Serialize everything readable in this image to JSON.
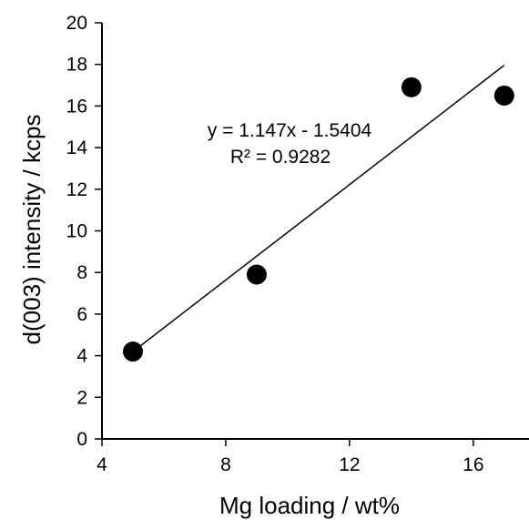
{
  "chart_data": {
    "type": "scatter",
    "xlabel": "Mg loading / wt%",
    "ylabel": "d(003) intensity / kcps",
    "xlim": [
      4,
      17.8
    ],
    "ylim": [
      0,
      20
    ],
    "xticks": [
      4,
      8,
      12,
      16
    ],
    "yticks": [
      0,
      2,
      4,
      6,
      8,
      10,
      12,
      14,
      16,
      18,
      20
    ],
    "series": [
      {
        "x": [
          5,
          9,
          14,
          17
        ],
        "y": [
          4.2,
          7.9,
          16.9,
          16.5
        ],
        "marker_color": "#000000"
      }
    ],
    "trendline": {
      "type": "linear",
      "slope": 1.147,
      "intercept": -1.5404,
      "x_range": [
        5,
        17
      ],
      "color": "#000000"
    },
    "annotations": {
      "equation": "y = 1.147x - 1.5404",
      "r_squared": "R² = 0.9282"
    },
    "grid": false,
    "legend": "none"
  }
}
